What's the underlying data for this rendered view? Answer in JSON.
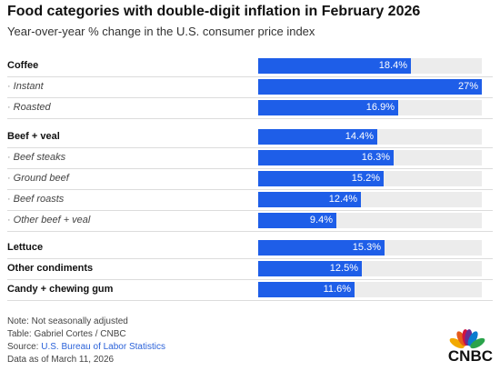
{
  "header": {
    "title": "Food categories with double-digit inflation in February 2026",
    "subtitle": "Year-over-year % change in the U.S. consumer price index"
  },
  "chart_data": {
    "type": "bar",
    "orientation": "horizontal",
    "title": "Food categories with double-digit inflation in February 2026",
    "subtitle": "Year-over-year % change in the U.S. consumer price index",
    "xlim": [
      0,
      27
    ],
    "categories": [
      "Coffee",
      "Instant",
      "Roasted",
      "Beef + veal",
      "Beef steaks",
      "Ground beef",
      "Beef roasts",
      "Other beef + veal",
      "Lettuce",
      "Other condiments",
      "Candy + chewing gum"
    ],
    "values": [
      18.4,
      27,
      16.9,
      14.4,
      16.3,
      15.2,
      12.4,
      9.4,
      15.3,
      12.5,
      11.6
    ],
    "value_labels": [
      "18.4%",
      "27%",
      "16.9%",
      "14.4%",
      "16.3%",
      "15.2%",
      "12.4%",
      "9.4%",
      "15.3%",
      "12.5%",
      "11.6%"
    ],
    "levels": [
      "main",
      "sub",
      "sub",
      "main",
      "sub",
      "sub",
      "sub",
      "sub",
      "main",
      "main",
      "main"
    ],
    "bar_color": "#1e5ee8",
    "track_color": "#ececec"
  },
  "footer": {
    "note": "Note: Not seasonally adjusted",
    "table": "Table: Gabriel Cortes / CNBC",
    "source_prefix": "Source: ",
    "source_link": "U.S. Bureau of Labor Statistics",
    "date": "Data as of March 11, 2026"
  },
  "logo": {
    "text": "CNBC",
    "colors": [
      "#f2a900",
      "#e55a1a",
      "#d11241",
      "#6a2c91",
      "#0a7ccf",
      "#2aa34a"
    ]
  }
}
